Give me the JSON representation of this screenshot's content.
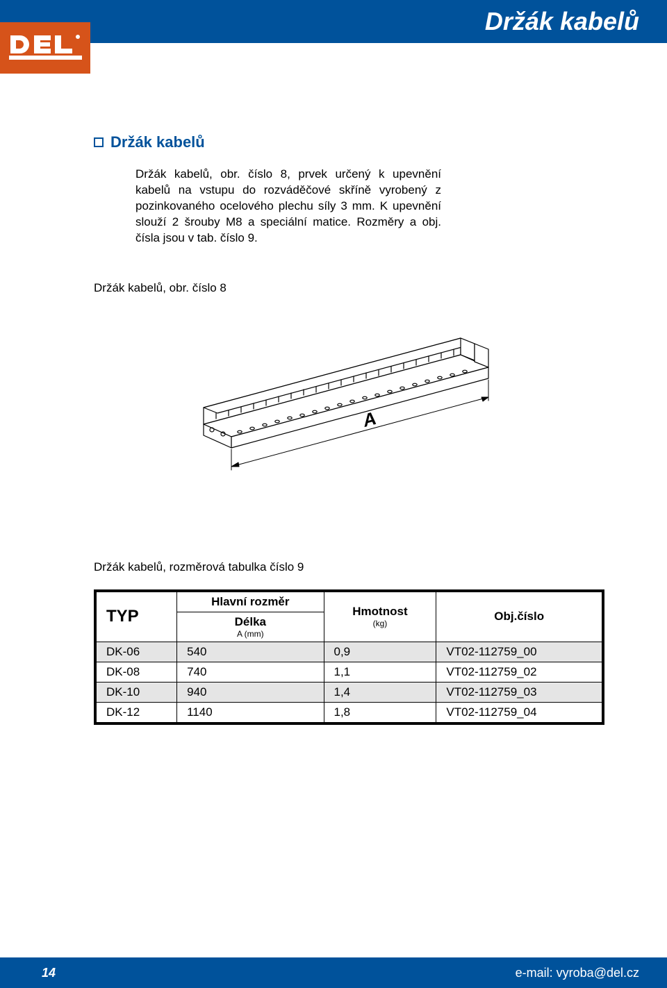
{
  "header": {
    "title": "Držák kabelů"
  },
  "logo": {
    "text": "DEL",
    "bg_color": "#d6531a",
    "fg_color": "#ffffff"
  },
  "section": {
    "title": "Držák kabelů",
    "body": "Držák kabelů, obr. číslo 8, prvek určený k upevnění kabelů na vstupu do rozváděčové skříně vyrobený z pozinkovaného ocelového plechu síly 3 mm. K upevnění slouží 2 šrouby M8 a speciální matice. Rozměry a obj. čísla jsou v tab. číslo 9."
  },
  "figure": {
    "caption": "Držák kabelů, obr. číslo 8",
    "dimension_label": "A"
  },
  "table": {
    "caption": "Držák kabelů, rozměrová tabulka číslo 9",
    "headers": {
      "typ": "TYP",
      "dim_group": "Hlavní rozměr",
      "dim_col": "Délka",
      "dim_unit": "A (mm)",
      "weight": "Hmotnost",
      "weight_unit": "(kg)",
      "order": "Obj.číslo"
    },
    "rows": [
      {
        "typ": "DK-06",
        "len": "540",
        "w": "0,9",
        "ord": "VT02-112759_00",
        "shade": true
      },
      {
        "typ": "DK-08",
        "len": "740",
        "w": "1,1",
        "ord": "VT02-112759_02",
        "shade": false
      },
      {
        "typ": "DK-10",
        "len": "940",
        "w": "1,4",
        "ord": "VT02-112759_03",
        "shade": true
      },
      {
        "typ": "DK-12",
        "len": "1140",
        "w": "1,8",
        "ord": "VT02-112759_04",
        "shade": false
      }
    ],
    "shade_color": "#e5e5e5"
  },
  "footer": {
    "page": "14",
    "email": "e-mail: vyroba@del.cz"
  },
  "colors": {
    "brand_blue": "#00529b",
    "brand_orange": "#d6531a",
    "text": "#000000",
    "bg": "#ffffff"
  }
}
